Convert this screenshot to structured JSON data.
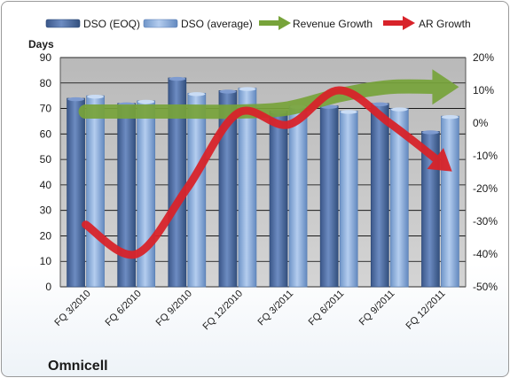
{
  "company": "Omnicell",
  "colors": {
    "plot_bg": "#c0c0c0",
    "grid": "#000000",
    "eoq_bar": "#4f6fa6",
    "avg_bar": "#8eb2e0",
    "revenue_arrow": "#77a33a",
    "ar_arrow": "#d8232a"
  },
  "chart_data": {
    "type": "bar",
    "categories": [
      "FQ 3/2010",
      "FQ 6/2010",
      "FQ 9/2010",
      "FQ 12/2010",
      "FQ 3/2011",
      "FQ 6/2011",
      "FQ 9/2011",
      "FQ 12/2011"
    ],
    "series": [
      {
        "name": "DSO (EOQ)",
        "values": [
          74,
          72,
          82,
          77,
          69,
          71,
          72,
          61
        ]
      },
      {
        "name": "DSO (average)",
        "values": [
          75,
          73,
          76,
          78,
          71,
          69,
          70,
          67
        ]
      }
    ],
    "line_series": [
      {
        "name": "Revenue Growth",
        "values": [
          3.5,
          3.5,
          3.5,
          3.5,
          4.5,
          8.5,
          11,
          11
        ]
      },
      {
        "name": "AR Growth",
        "values": [
          -31,
          -40,
          -20,
          3,
          -0.5,
          10,
          0,
          -12
        ]
      }
    ],
    "ylabel": "Days",
    "ylim": [
      0,
      90
    ],
    "yticks": [
      "0",
      "10",
      "20",
      "30",
      "40",
      "50",
      "60",
      "70",
      "80",
      "90"
    ],
    "y2lim": [
      -50,
      20
    ],
    "y2ticks": [
      "-50%",
      "-40%",
      "-30%",
      "-20%",
      "-10%",
      "0%",
      "10%",
      "20%"
    ],
    "grid": true,
    "legend": "top"
  }
}
